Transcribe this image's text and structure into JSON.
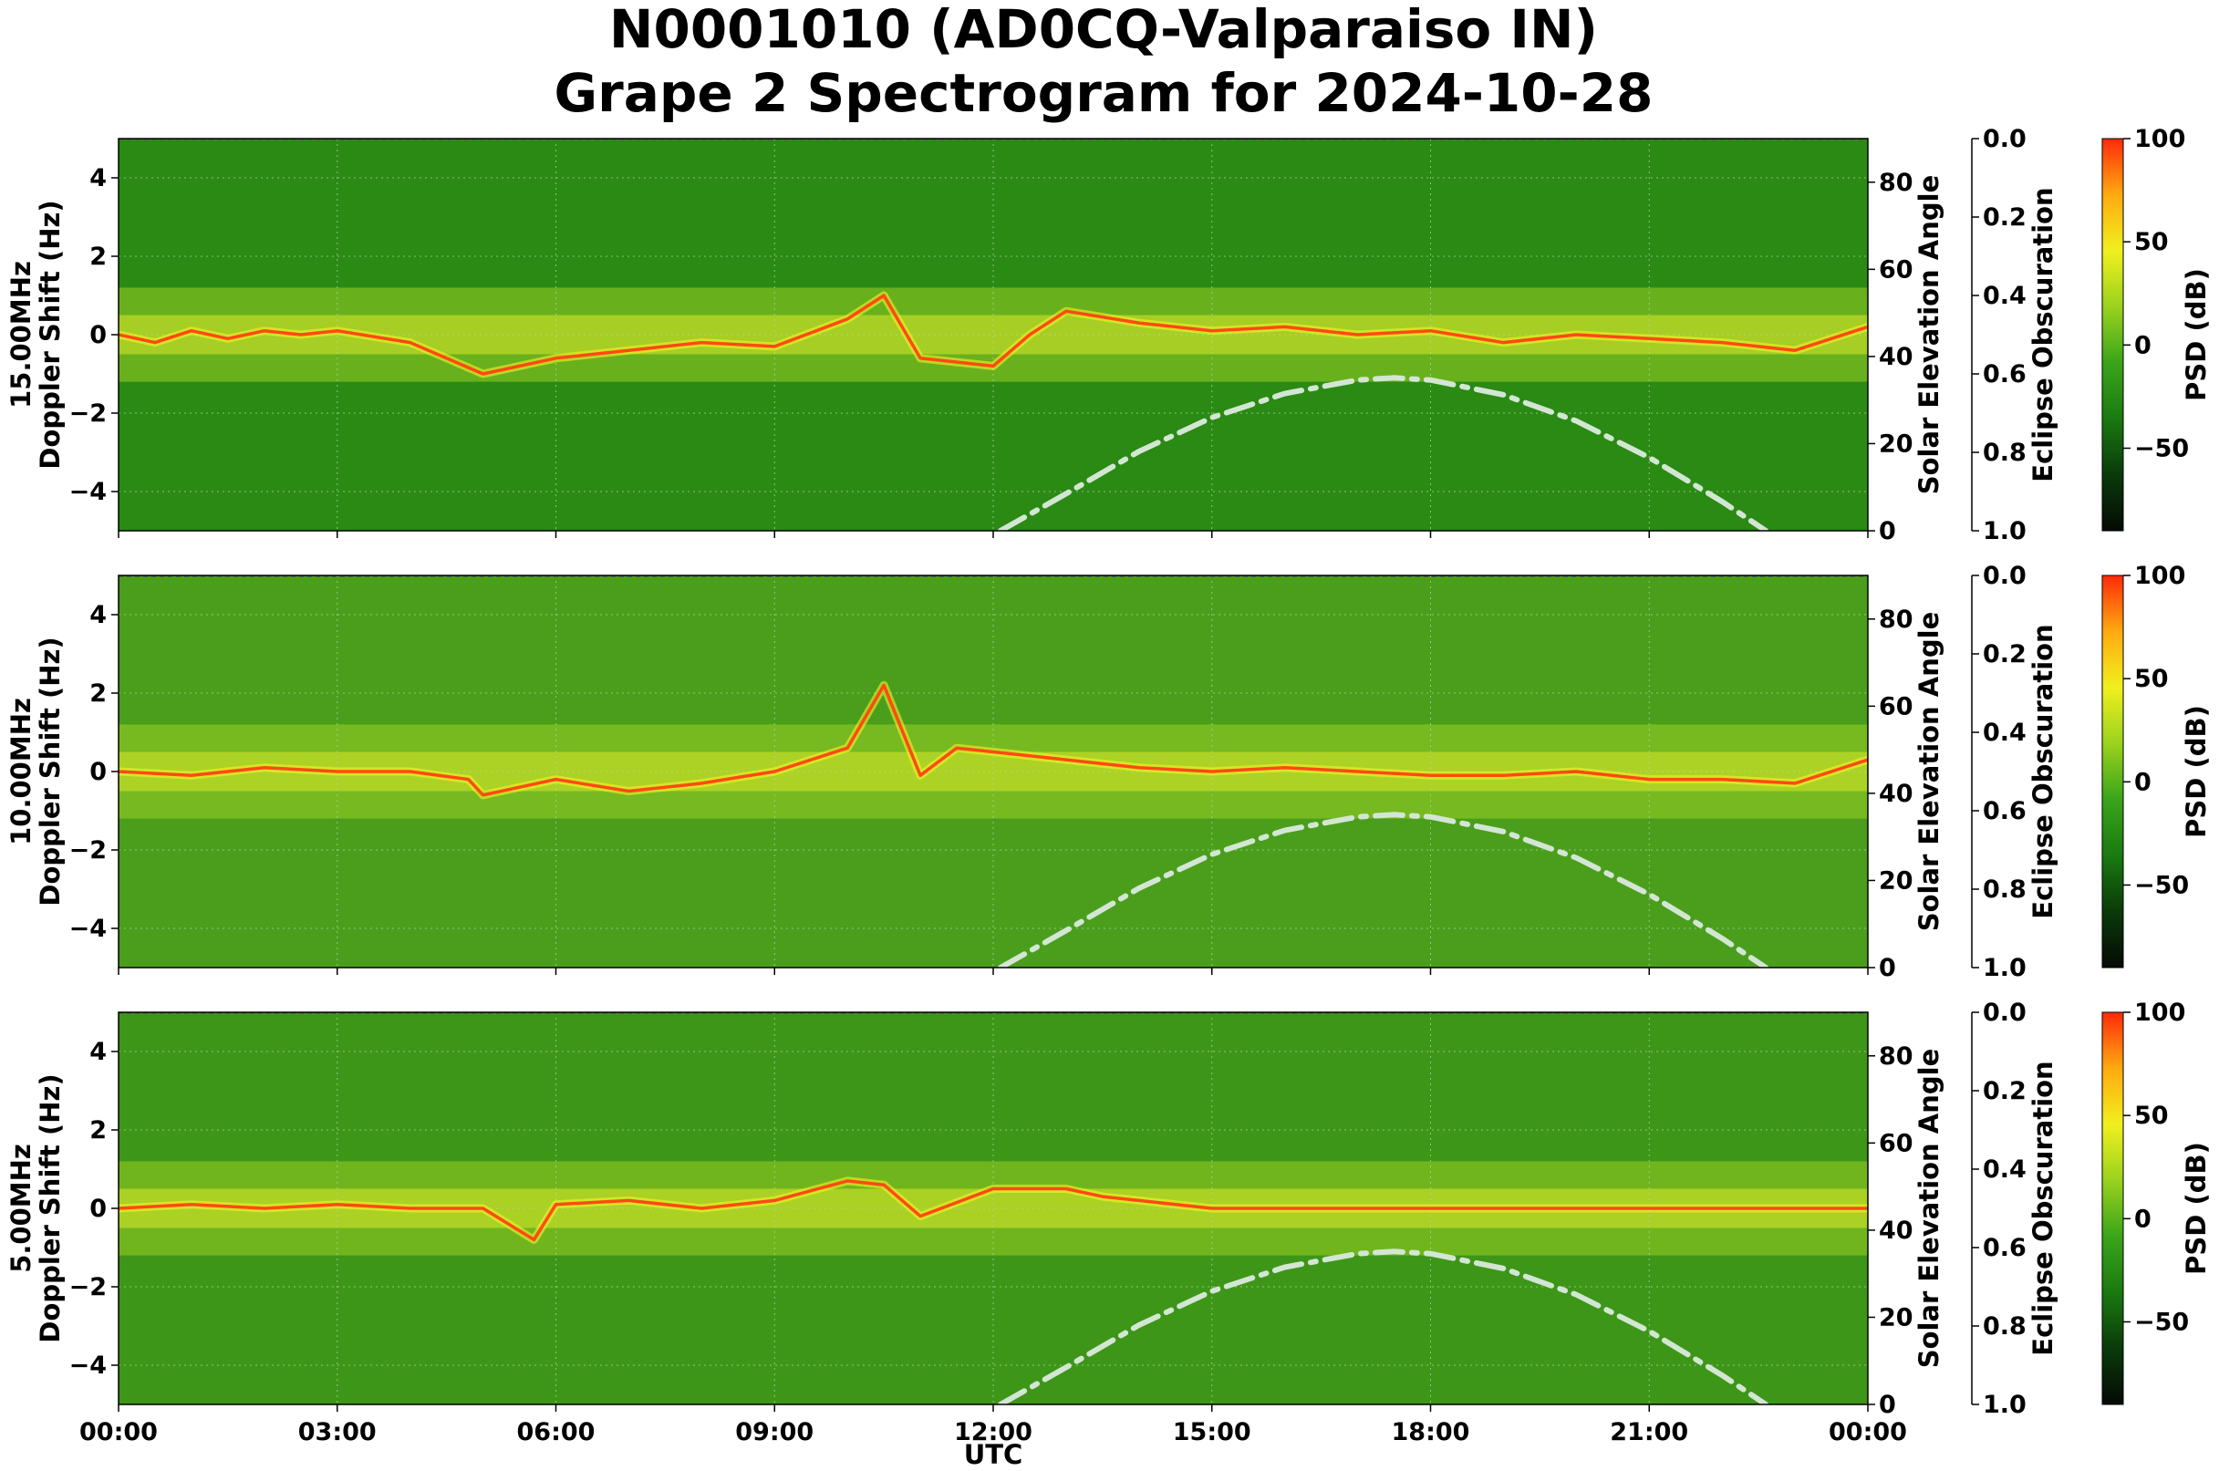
{
  "chart_data": {
    "type": "heatmap",
    "title_line1": "N0001010 (AD0CQ-Valparaiso IN)",
    "title_line2": "Grape 2 Spectrogram for 2024-10-28",
    "xlabel": "UTC",
    "x_ticks": [
      "00:00",
      "03:00",
      "06:00",
      "09:00",
      "12:00",
      "15:00",
      "18:00",
      "21:00",
      "00:00"
    ],
    "xlim_hours": [
      0,
      24
    ],
    "y_ticks": [
      4,
      2,
      0,
      -2,
      -4
    ],
    "y_tick_labels": [
      "4",
      "2",
      "0",
      "−2",
      "−4"
    ],
    "ylim": [
      -5,
      5
    ],
    "right_axis_label": "Solar Elevation Angle",
    "right_ticks": [
      "80",
      "60",
      "40",
      "20",
      "0"
    ],
    "right_tick_values": [
      80,
      60,
      40,
      20,
      0
    ],
    "right_lim": [
      0,
      90
    ],
    "eclipse_label": "Eclipse Obscuration",
    "eclipse_ticks": [
      "0.0",
      "0.2",
      "0.4",
      "0.6",
      "0.8",
      "1.0"
    ],
    "eclipse_tick_values": [
      0.0,
      0.2,
      0.4,
      0.6,
      0.8,
      1.0
    ],
    "colorbar_label": "PSD (dB)",
    "colorbar_ticks": [
      "100",
      "50",
      "0",
      "−50"
    ],
    "colorbar_tick_values": [
      100,
      50,
      0,
      -50
    ],
    "colorbar_range": [
      -90,
      100
    ],
    "colorbar_colors": [
      "#050a05",
      "#0a3a0a",
      "#1a7a10",
      "#3aa51a",
      "#9ad21e",
      "#f0f01e",
      "#ffaa10",
      "#ff2a0a"
    ],
    "solar_elevation_curve": {
      "hours": [
        12.1,
        13,
        14,
        15,
        16,
        17,
        17.5,
        18,
        19,
        20,
        21,
        22,
        22.6
      ],
      "degrees": [
        0,
        8.5,
        18.2,
        26.0,
        31.5,
        34.6,
        35.1,
        34.6,
        31.2,
        25.2,
        16.8,
        6.7,
        0
      ],
      "color": "#d3e6d3"
    },
    "panels": [
      {
        "label": "15.00MHz",
        "ylabel": "Doppler Shift (Hz)",
        "background": "#2a8a14",
        "trace": {
          "hours": [
            0,
            0.5,
            1,
            1.5,
            2,
            2.5,
            3,
            4,
            5,
            6,
            7,
            8,
            9,
            10,
            10.5,
            11,
            12,
            12.5,
            13,
            14,
            15,
            16,
            17,
            18,
            19,
            20,
            21,
            22,
            23,
            24
          ],
          "doppler_hz": [
            0,
            -0.2,
            0.1,
            -0.1,
            0.1,
            0.0,
            0.1,
            -0.2,
            -1.0,
            -0.6,
            -0.4,
            -0.2,
            -0.3,
            0.4,
            1.0,
            -0.6,
            -0.8,
            0.0,
            0.6,
            0.3,
            0.1,
            0.2,
            0.0,
            0.1,
            -0.2,
            0.0,
            -0.1,
            -0.2,
            -0.4,
            0.2
          ]
        }
      },
      {
        "label": "10.00MHz",
        "ylabel": "Doppler Shift (Hz)",
        "background": "#4a9e1c",
        "trace": {
          "hours": [
            0,
            1,
            2,
            3,
            4,
            4.8,
            5,
            6,
            7,
            8,
            9,
            10,
            10.5,
            11,
            11.5,
            12,
            13,
            14,
            15,
            16,
            17,
            18,
            19,
            20,
            21,
            22,
            23,
            24
          ],
          "doppler_hz": [
            0,
            -0.1,
            0.1,
            0.0,
            0.0,
            -0.2,
            -0.6,
            -0.2,
            -0.5,
            -0.3,
            0.0,
            0.6,
            2.2,
            -0.1,
            0.6,
            0.5,
            0.3,
            0.1,
            0.0,
            0.1,
            0.0,
            -0.1,
            -0.1,
            0.0,
            -0.2,
            -0.2,
            -0.3,
            0.3
          ]
        }
      },
      {
        "label": "5.00MHz",
        "ylabel": "Doppler Shift (Hz)",
        "background": "#3d9618",
        "trace": {
          "hours": [
            0,
            1,
            2,
            3,
            4,
            5,
            5.7,
            6,
            7,
            8,
            9,
            10,
            10.5,
            11,
            12,
            13,
            13.5,
            14,
            15,
            24
          ],
          "doppler_hz": [
            0,
            0.1,
            0.0,
            0.1,
            0.0,
            0.0,
            -0.8,
            0.1,
            0.2,
            0.0,
            0.2,
            0.7,
            0.6,
            -0.2,
            0.5,
            0.5,
            0.3,
            0.2,
            0.0,
            0.0
          ]
        }
      }
    ]
  }
}
